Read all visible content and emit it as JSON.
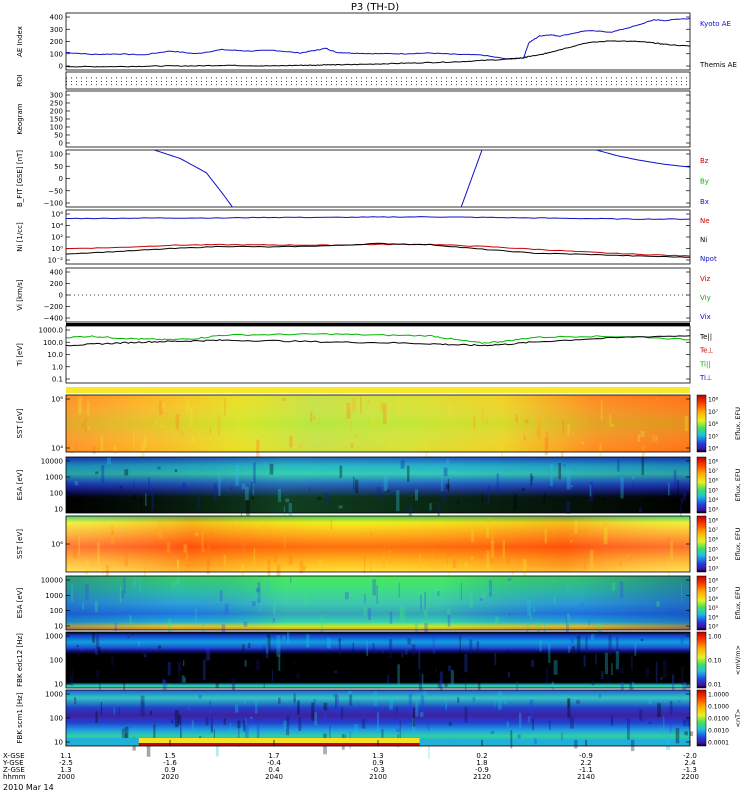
{
  "title": "P3 (TH-D)",
  "date_label": "2010 Mar 14",
  "colors": {
    "blue": "#1010c8",
    "red": "#c80000",
    "green": "#00b400",
    "black": "#000000"
  },
  "chart_data": [
    {
      "type": "line",
      "id": "ae",
      "ylabel": "AE Index",
      "yticks": [
        "400",
        "300",
        "200",
        "100",
        "0"
      ],
      "ylim": [
        0,
        420
      ],
      "legend": [
        {
          "name": "Kyoto AE",
          "color": "#1010c8"
        },
        {
          "name": "Themis AE",
          "color": "#000000"
        }
      ],
      "x": [
        0,
        5,
        10,
        15,
        20,
        25,
        30,
        35,
        40,
        45,
        48,
        50,
        52,
        55,
        60,
        65,
        70,
        75,
        80,
        85,
        88,
        89,
        91,
        93,
        95,
        100,
        105,
        110,
        113,
        115,
        120
      ],
      "series": [
        {
          "name": "Kyoto AE",
          "color": "#1010c8",
          "values": [
            130,
            115,
            118,
            112,
            140,
            120,
            150,
            140,
            145,
            125,
            145,
            160,
            130,
            125,
            120,
            120,
            125,
            115,
            110,
            80,
            90,
            200,
            250,
            260,
            250,
            290,
            280,
            330,
            370,
            365,
            380
          ]
        },
        {
          "name": "Themis AE",
          "color": "#000000",
          "values": [
            25,
            25,
            25,
            28,
            30,
            30,
            35,
            32,
            30,
            35,
            35,
            40,
            38,
            40,
            45,
            50,
            55,
            60,
            70,
            80,
            90,
            100,
            110,
            130,
            150,
            200,
            215,
            210,
            200,
            190,
            175
          ]
        }
      ]
    },
    {
      "type": "heatmap",
      "id": "roi",
      "ylabel": "ROI"
    },
    {
      "type": "line",
      "id": "keogram",
      "ylabel": "Keogram",
      "yticks": [
        "300",
        "250",
        "200",
        "150",
        "100",
        "50",
        "0"
      ],
      "ylim": [
        0,
        300
      ]
    },
    {
      "type": "line",
      "id": "bfield",
      "ylabel": "B_FIT [GSE] [nT]",
      "yticks": [
        "100",
        "50",
        "0",
        "−50",
        "−100"
      ],
      "ylim": [
        -100,
        100
      ],
      "legend": [
        {
          "name": "Bz",
          "color": "#c80000"
        },
        {
          "name": "By",
          "color": "#00b400"
        },
        {
          "name": "Bx",
          "color": "#1010c8"
        }
      ],
      "series": [
        {
          "name": "Bx",
          "color": "#1010c8",
          "x": [
            17,
            22,
            27,
            30,
            32
          ],
          "values": [
            100,
            70,
            20,
            -50,
            -100
          ]
        },
        {
          "name": "Bx",
          "color": "#1010c8",
          "x": [
            76,
            78,
            80
          ],
          "values": [
            -100,
            0,
            100
          ]
        },
        {
          "name": "Bx",
          "color": "#1010c8",
          "x": [
            102,
            106,
            110,
            115,
            120
          ],
          "values": [
            100,
            80,
            65,
            50,
            40
          ]
        }
      ]
    },
    {
      "type": "line",
      "id": "density",
      "ylabel": "Ni [1/cc]",
      "yticks": [
        "10⁶",
        "10⁴",
        "10²",
        "10⁰",
        "10⁻²"
      ],
      "ylim": [
        -3,
        6.5
      ],
      "legend": [
        {
          "name": "Ne",
          "color": "#c80000"
        },
        {
          "name": "Ni",
          "color": "#000000"
        },
        {
          "name": "Npot",
          "color": "#1010c8"
        }
      ],
      "x": [
        0,
        10,
        20,
        30,
        40,
        50,
        60,
        70,
        80,
        90,
        100,
        110,
        120
      ],
      "series": [
        {
          "name": "Npot",
          "color": "#1010c8",
          "values": [
            5.0,
            5.05,
            5.1,
            5.1,
            5.2,
            5.2,
            5.25,
            5.3,
            5.2,
            5.1,
            5.0,
            4.9,
            4.9
          ]
        },
        {
          "name": "Ne",
          "color": "#c80000",
          "values": [
            -0.3,
            -0.1,
            0.3,
            0.4,
            0.35,
            0.3,
            0.45,
            0.45,
            0.1,
            -0.4,
            -0.9,
            -1.3,
            -1.6
          ]
        },
        {
          "name": "Ni",
          "color": "#000000",
          "values": [
            -1.2,
            -0.8,
            -0.3,
            0.1,
            0.0,
            0.2,
            0.6,
            0.4,
            -0.4,
            -1.1,
            -1.3,
            -1.6,
            -1.8
          ]
        }
      ]
    },
    {
      "type": "line",
      "id": "velocity",
      "ylabel": "Vi [km/s]",
      "yticks": [
        "400",
        "200",
        "0",
        "−200",
        "−400"
      ],
      "ylim": [
        -500,
        500
      ],
      "legend": [
        {
          "name": "Viz",
          "color": "#c80000"
        },
        {
          "name": "Viy",
          "color": "#00b400"
        },
        {
          "name": "Vix",
          "color": "#1010c8"
        }
      ]
    },
    {
      "type": "line",
      "id": "temperature",
      "ylabel": "Ti [eV]",
      "yticks": [
        "1000.0",
        "100.0",
        "10.0",
        "1.0",
        "0.1"
      ],
      "ylim": [
        -1.2,
        3.8
      ],
      "legend": [
        {
          "name": "Te||",
          "color": "#000000"
        },
        {
          "name": "Te⊥",
          "color": "#c80000"
        },
        {
          "name": "Ti||",
          "color": "#00b400"
        },
        {
          "name": "Ti⊥",
          "color": "#1010c8"
        }
      ],
      "x": [
        0,
        5,
        10,
        15,
        20,
        25,
        30,
        40,
        50,
        60,
        70,
        75,
        80,
        85,
        90,
        100,
        110,
        120
      ],
      "series": [
        {
          "name": "Ti||",
          "color": "#00b400",
          "values": [
            2.8,
            2.9,
            2.75,
            2.65,
            2.6,
            2.7,
            3.0,
            3.05,
            3.1,
            3.0,
            2.95,
            2.6,
            2.3,
            2.5,
            2.8,
            2.9,
            2.85,
            2.6
          ]
        },
        {
          "name": "Te||",
          "color": "#000000",
          "values": [
            2.1,
            2.2,
            2.3,
            2.4,
            2.45,
            2.5,
            2.55,
            2.5,
            2.4,
            2.35,
            2.25,
            2.15,
            2.1,
            2.2,
            2.4,
            2.65,
            2.85,
            2.95
          ]
        }
      ]
    },
    {
      "type": "heatmap",
      "id": "sst1",
      "ylabel": "SST [eV]",
      "yticks": [
        "10⁶",
        "10⁴"
      ],
      "colorbar": {
        "title": "Eflux, EFU",
        "ticks": [
          "10⁸",
          "10⁷",
          "10⁶",
          "10⁵",
          "10⁴"
        ]
      }
    },
    {
      "type": "heatmap",
      "id": "esa1",
      "ylabel": "ESA [eV]",
      "yticks": [
        "10000",
        "1000",
        "100",
        "10"
      ],
      "colorbar": {
        "title": "Eflux, EFU",
        "ticks": [
          "10⁸",
          "10⁷",
          "10⁶",
          "10⁵",
          "10⁴",
          "10³"
        ]
      }
    },
    {
      "type": "heatmap",
      "id": "sst2",
      "ylabel": "SST [eV]",
      "yticks": [
        "10⁶"
      ],
      "colorbar": {
        "title": "Eflux, EFU",
        "ticks": [
          "10⁸",
          "10⁷",
          "10⁶",
          "10⁵",
          "10⁴",
          "10³"
        ]
      }
    },
    {
      "type": "heatmap",
      "id": "esa2",
      "ylabel": "ESA [eV]",
      "yticks": [
        "10000",
        "1000",
        "100",
        "10"
      ],
      "colorbar": {
        "title": "Eflux, EFU",
        "ticks": [
          "10⁸",
          "10⁷",
          "10⁶",
          "10⁵",
          "10⁴",
          "10³"
        ]
      }
    },
    {
      "type": "heatmap",
      "id": "fbk1",
      "ylabel": "FBK edc12 [Hz]",
      "yticks": [
        "1000",
        "100",
        "10"
      ],
      "colorbar": {
        "title": "<mV/m>",
        "ticks": [
          "1.00",
          "0.10",
          "0.01"
        ]
      }
    },
    {
      "type": "heatmap",
      "id": "fbk2",
      "ylabel": "FBK scm1 [Hz]",
      "yticks": [
        "1000",
        "100",
        "10"
      ],
      "colorbar": {
        "title": "<nT>",
        "ticks": [
          "1.0000",
          "0.1000",
          "0.0100",
          "0.0010",
          "0.0001"
        ]
      }
    }
  ],
  "x_axis": {
    "row_labels": [
      "X-GSE",
      "Y-GSE",
      "Z-GSE",
      "hhmm"
    ],
    "columns": [
      [
        "1.1",
        "-2.5",
        "1.3",
        "2000"
      ],
      [
        "1.5",
        "-1.6",
        "0.9",
        "2020"
      ],
      [
        "1.7",
        "-0.4",
        "0.4",
        "2040"
      ],
      [
        "1.3",
        "0.9",
        "-0.3",
        "2100"
      ],
      [
        "0.2",
        "1.8",
        "-0.9",
        "2120"
      ],
      [
        "-0.9",
        "2.2",
        "-1.1",
        "2140"
      ],
      [
        "-2.0",
        "2.4",
        "-1.3",
        "2200"
      ]
    ]
  }
}
